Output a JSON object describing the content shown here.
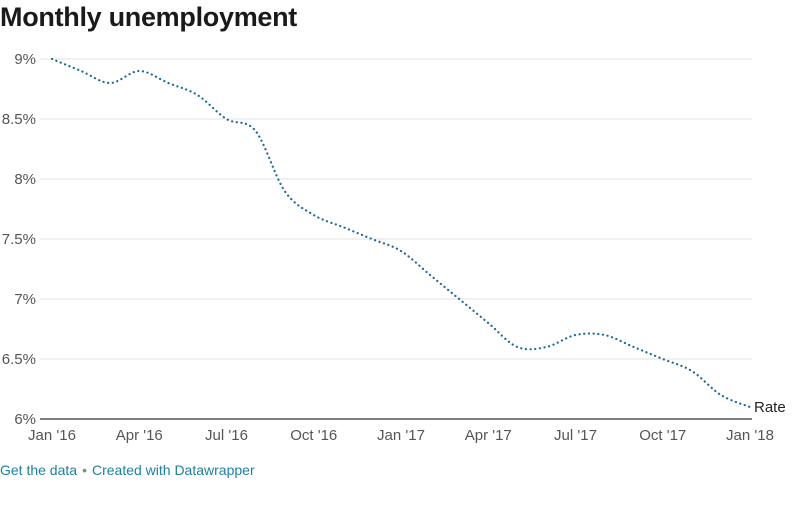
{
  "chart_data": {
    "type": "line",
    "title": "Monthly unemployment",
    "x": [
      "Jan '16",
      "Feb '16",
      "Mar '16",
      "Apr '16",
      "May '16",
      "Jun '16",
      "Jul '16",
      "Aug '16",
      "Sep '16",
      "Oct '16",
      "Nov '16",
      "Dec '16",
      "Jan '17",
      "Feb '17",
      "Mar '17",
      "Apr '17",
      "May '17",
      "Jun '17",
      "Jul '17",
      "Aug '17",
      "Sep '17",
      "Oct '17",
      "Nov '17",
      "Dec '17",
      "Jan '18"
    ],
    "series": [
      {
        "name": "Rate",
        "values": [
          9.0,
          8.9,
          8.8,
          8.9,
          8.8,
          8.7,
          8.5,
          8.4,
          7.9,
          7.7,
          7.6,
          7.5,
          7.4,
          7.2,
          7.0,
          6.8,
          6.6,
          6.6,
          6.7,
          6.7,
          6.6,
          6.5,
          6.4,
          6.2,
          6.1
        ]
      }
    ],
    "x_tick_labels": [
      "Jan '16",
      "Apr '16",
      "Jul '16",
      "Oct '16",
      "Jan '17",
      "Apr '17",
      "Jul '17",
      "Oct '17",
      "Jan '18"
    ],
    "y_ticks": [
      6,
      6.5,
      7,
      7.5,
      8,
      8.5,
      9
    ],
    "y_tick_labels": [
      "6%",
      "6.5%",
      "7%",
      "7.5%",
      "8%",
      "8.5%",
      "9%"
    ],
    "ylim": [
      6,
      9
    ],
    "xlabel": "",
    "ylabel": "",
    "grid": true,
    "line_style": "dotted",
    "line_color": "#1d6996",
    "grid_color": "#e0e0e0",
    "axis_color": "#333333"
  },
  "footer": {
    "get_data_label": "Get the data",
    "separator": "•",
    "created_with_label": "Created with Datawrapper"
  }
}
